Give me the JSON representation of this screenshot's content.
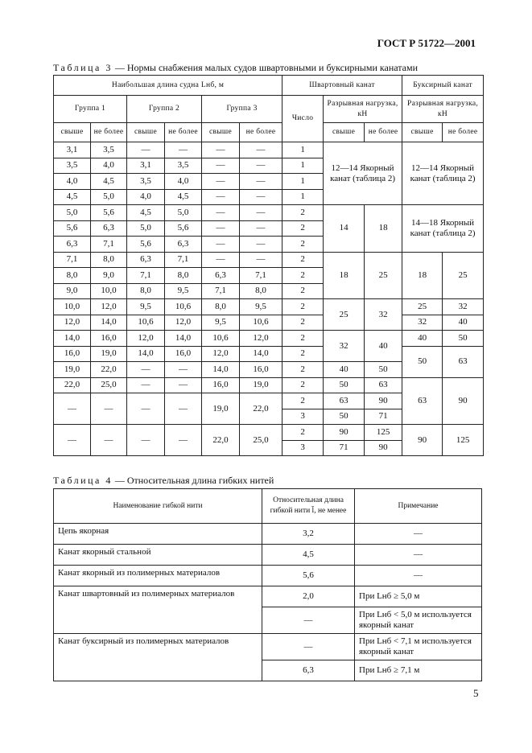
{
  "header": {
    "doc_id": "ГОСТ Р 51722—2001"
  },
  "table3": {
    "caption_label": "Таблица 3",
    "caption_text": "— Нормы снабжения малых судов швартовными и буксирными канатами",
    "header_rows": [
      [
        "Наибольшая длина судна Lнб, м",
        "Швартовный канат",
        "Буксирный канат"
      ],
      [
        "Группа 1",
        "Группа 2",
        "Группа 3",
        "Число",
        "Разрывная нагрузка, кН",
        "Разрывная нагрузка, кН"
      ],
      [
        "свыше",
        "не более",
        "свыше",
        "не более",
        "свыше",
        "не более",
        "свыше",
        "не более",
        "свыше",
        "не более"
      ]
    ],
    "rows": [
      [
        "3,1",
        "3,5",
        "—",
        "—",
        "—",
        "—",
        "1",
        "12—14 Якорный канат (таблица 2)",
        "12—14 Якорный канат (таблица 2)"
      ],
      [
        "3,5",
        "4,0",
        "3,1",
        "3,5",
        "—",
        "—",
        "1"
      ],
      [
        "4,0",
        "4,5",
        "3,5",
        "4,0",
        "—",
        "—",
        "1"
      ],
      [
        "4,5",
        "5,0",
        "4,0",
        "4,5",
        "—",
        "—",
        "1"
      ],
      [
        "5,0",
        "5,6",
        "4,5",
        "5,0",
        "—",
        "—",
        "2",
        "14",
        "18",
        "14—18 Якорный канат (таблица 2)"
      ],
      [
        "5,6",
        "6,3",
        "5,0",
        "5,6",
        "—",
        "—",
        "2"
      ],
      [
        "6,3",
        "7,1",
        "5,6",
        "6,3",
        "—",
        "—",
        "2"
      ],
      [
        "7,1",
        "8,0",
        "6,3",
        "7,1",
        "—",
        "—",
        "2",
        "18",
        "25",
        "18",
        "25"
      ],
      [
        "8,0",
        "9,0",
        "7,1",
        "8,0",
        "6,3",
        "7,1",
        "2"
      ],
      [
        "9,0",
        "10,0",
        "8,0",
        "9,5",
        "7,1",
        "8,0",
        "2"
      ],
      [
        "10,0",
        "12,0",
        "9,5",
        "10,6",
        "8,0",
        "9,5",
        "2",
        "25",
        "32",
        "25",
        "32"
      ],
      [
        "12,0",
        "14,0",
        "10,6",
        "12,0",
        "9,5",
        "10,6",
        "2",
        "32",
        "40"
      ],
      [
        "14,0",
        "16,0",
        "12,0",
        "14,0",
        "10,6",
        "12,0",
        "2",
        "32",
        "40",
        "40",
        "50"
      ],
      [
        "16,0",
        "19,0",
        "14,0",
        "16,0",
        "12,0",
        "14,0",
        "2",
        "50",
        "63"
      ],
      [
        "19,0",
        "22,0",
        "—",
        "—",
        "14,0",
        "16,0",
        "2",
        "40",
        "50"
      ],
      [
        "22,0",
        "25,0",
        "—",
        "—",
        "16,0",
        "19,0",
        "2",
        "50",
        "63",
        "63",
        "90"
      ],
      [
        "—",
        "—",
        "—",
        "—",
        "19,0",
        "22,0",
        "2",
        "63",
        "90"
      ],
      [
        "3",
        "50",
        "71"
      ],
      [
        "—",
        "—",
        "—",
        "—",
        "22,0",
        "25,0",
        "2",
        "90",
        "125",
        "90",
        "125"
      ],
      [
        "3",
        "71",
        "90"
      ]
    ]
  },
  "table4": {
    "caption_label": "Таблица 4",
    "caption_text": "— Относительная длина гибких нитей",
    "header_row": [
      "Наименование гибкой нити",
      "Относительная длина гибкой нити l̄, не менее",
      "Примечание"
    ],
    "rows": [
      [
        "Цепь якорная",
        "3,2",
        "—"
      ],
      [
        "Канат якорный стальной",
        "4,5",
        "—"
      ],
      [
        "Канат якорный из полимерных материалов",
        "5,6",
        "—"
      ],
      [
        "Канат швартовный из полимерных материалов",
        "2,0",
        "При Lнб ≥ 5,0 м"
      ],
      [
        "—",
        "При Lнб < 5,0 м используется якорный канат"
      ],
      [
        "Канат буксирный из полимерных материалов",
        "—",
        "При Lнб < 7,1 м используется якорный канат"
      ],
      [
        "6,3",
        "При Lнб ≥ 7,1 м"
      ]
    ]
  },
  "page_number": "5"
}
